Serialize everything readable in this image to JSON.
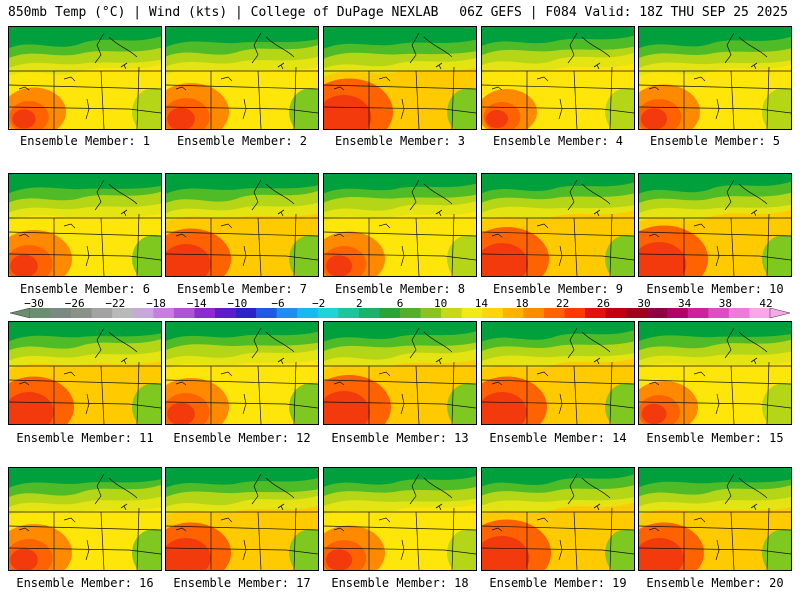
{
  "header": {
    "left": "850mb Temp (°C) | Wind (kts) | College of DuPage NEXLAB",
    "right": "06Z GEFS | F084 Valid: 18Z THU SEP 25 2025"
  },
  "members": [
    {
      "label": "Ensemble Member: 1",
      "warmth": 0.55,
      "cool": 0.1
    },
    {
      "label": "Ensemble Member: 2",
      "warmth": 0.7,
      "cool": 0.25
    },
    {
      "label": "Ensemble Member: 3",
      "warmth": 0.85,
      "cool": 0.05
    },
    {
      "label": "Ensemble Member: 4",
      "warmth": 0.5,
      "cool": 0.4
    },
    {
      "label": "Ensemble Member: 5",
      "warmth": 0.65,
      "cool": 0.1
    },
    {
      "label": "Ensemble Member: 6",
      "warmth": 0.7,
      "cool": 0.35
    },
    {
      "label": "Ensemble Member: 7",
      "warmth": 0.75,
      "cool": 0.3
    },
    {
      "label": "Ensemble Member: 8",
      "warmth": 0.65,
      "cool": 0.35
    },
    {
      "label": "Ensemble Member: 9",
      "warmth": 0.8,
      "cool": 0.35
    },
    {
      "label": "Ensemble Member: 10",
      "warmth": 0.85,
      "cool": 0.3
    },
    {
      "label": "Ensemble Member: 11",
      "warmth": 0.75,
      "cool": 0.35
    },
    {
      "label": "Ensemble Member: 12",
      "warmth": 0.7,
      "cool": 0.4
    },
    {
      "label": "Ensemble Member: 13",
      "warmth": 0.8,
      "cool": 0.3
    },
    {
      "label": "Ensemble Member: 14",
      "warmth": 0.75,
      "cool": 0.3
    },
    {
      "label": "Ensemble Member: 15",
      "warmth": 0.6,
      "cool": 0.35
    },
    {
      "label": "Ensemble Member: 16",
      "warmth": 0.7,
      "cool": 0.3
    },
    {
      "label": "Ensemble Member: 17",
      "warmth": 0.75,
      "cool": 0.3
    },
    {
      "label": "Ensemble Member: 18",
      "warmth": 0.65,
      "cool": 0.4
    },
    {
      "label": "Ensemble Member: 19",
      "warmth": 0.85,
      "cool": 0.45
    },
    {
      "label": "Ensemble Member: 20",
      "warmth": 0.75,
      "cool": 0.35
    }
  ],
  "colorbar": {
    "ticks": [
      "−30",
      "−26",
      "−22",
      "−18",
      "−14",
      "−10",
      "−6",
      "−2",
      "2",
      "6",
      "10",
      "14",
      "18",
      "22",
      "26",
      "30",
      "34",
      "38",
      "42"
    ],
    "colors": [
      "#6b8e70",
      "#7a8a82",
      "#8a9188",
      "#a3a3a3",
      "#b9b9b9",
      "#c7a9d9",
      "#c77ee0",
      "#b153d6",
      "#8d2bd0",
      "#5a1ec9",
      "#2b23c4",
      "#1f5be0",
      "#1f8ef0",
      "#19b8f0",
      "#22d3d6",
      "#1fc49b",
      "#19b469",
      "#2aa43a",
      "#52b02a",
      "#8cc41f",
      "#c6d817",
      "#f0ec12",
      "#ffd40a",
      "#ffb300",
      "#ff8c00",
      "#ff6400",
      "#ff3a00",
      "#e01212",
      "#c00010",
      "#a0001a",
      "#900040",
      "#b0006a",
      "#cc2399",
      "#e04dc0",
      "#f07ad8",
      "#f8a8e8"
    ],
    "stops": [
      "#00a03c",
      "#23ad30",
      "#4fbb27",
      "#7fc81f",
      "#b5d616",
      "#e3e412",
      "#ffe60a",
      "#ffca00",
      "#ffac00",
      "#ff8a00",
      "#ff6200",
      "#f23a0c"
    ]
  }
}
